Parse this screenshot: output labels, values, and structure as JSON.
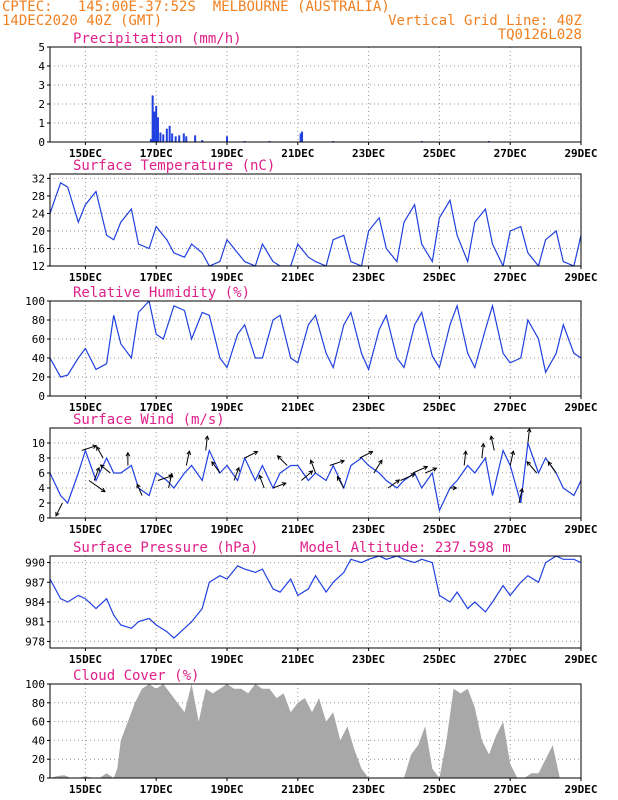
{
  "header": {
    "line1_left": "CPTEC:",
    "line1_coords": "145:00E-37:52S",
    "line1_city": "MELBOURNE (AUSTRALIA)",
    "line2_left": "14DEC2020 40Z (GMT)",
    "line2_right": "Vertical Grid Line: 40Z",
    "line3_right": "TQ0126L028"
  },
  "colors": {
    "header": "#f08020",
    "panel_title": "#e0208a",
    "series": "#2040e0",
    "cloud": "#a8a8a8",
    "grid": "#9a9a9a"
  },
  "x_axis": {
    "range_days": [
      14.0,
      29.0
    ],
    "ticks": [
      {
        "day": 15,
        "label": "15DEC"
      },
      {
        "day": 17,
        "label": "17DEC"
      },
      {
        "day": 19,
        "label": "19DEC"
      },
      {
        "day": 21,
        "label": "21DEC"
      },
      {
        "day": 23,
        "label": "23DEC"
      },
      {
        "day": 25,
        "label": "25DEC"
      },
      {
        "day": 27,
        "label": "27DEC"
      },
      {
        "day": 29,
        "label": "29DEC"
      }
    ]
  },
  "chart_data": [
    {
      "id": "precip",
      "type": "bar",
      "title": "Precipitation (mm/h)",
      "ylim": [
        0,
        5
      ],
      "yticks": [
        0,
        1,
        2,
        3,
        4,
        5
      ],
      "points": [
        [
          16.85,
          0.15
        ],
        [
          16.9,
          2.45
        ],
        [
          16.95,
          1.6
        ],
        [
          17.0,
          1.9
        ],
        [
          17.05,
          1.3
        ],
        [
          17.12,
          0.5
        ],
        [
          17.2,
          0.4
        ],
        [
          17.3,
          0.7
        ],
        [
          17.38,
          0.85
        ],
        [
          17.45,
          0.45
        ],
        [
          17.55,
          0.3
        ],
        [
          17.65,
          0.35
        ],
        [
          17.78,
          0.45
        ],
        [
          17.85,
          0.3
        ],
        [
          18.1,
          0.35
        ],
        [
          18.3,
          0.1
        ],
        [
          19.0,
          0.3
        ],
        [
          19.5,
          0.05
        ],
        [
          20.2,
          0.05
        ],
        [
          21.08,
          0.45
        ],
        [
          21.12,
          0.55
        ],
        [
          22.0,
          0.05
        ],
        [
          24.5,
          0.05
        ],
        [
          26.4,
          0.05
        ]
      ]
    },
    {
      "id": "temp",
      "type": "line",
      "title": "Surface Temperature (nC)",
      "ylim": [
        12,
        33
      ],
      "yticks": [
        12,
        16,
        20,
        24,
        28,
        32
      ],
      "x": [
        14.0,
        14.3,
        14.5,
        14.8,
        15.0,
        15.3,
        15.6,
        15.8,
        16.0,
        16.3,
        16.5,
        16.8,
        17.0,
        17.3,
        17.5,
        17.8,
        18.0,
        18.3,
        18.5,
        18.8,
        19.0,
        19.3,
        19.5,
        19.8,
        20.0,
        20.3,
        20.5,
        20.8,
        21.0,
        21.3,
        21.5,
        21.8,
        22.0,
        22.3,
        22.5,
        22.8,
        23.0,
        23.3,
        23.5,
        23.8,
        24.0,
        24.3,
        24.5,
        24.8,
        25.0,
        25.3,
        25.5,
        25.8,
        26.0,
        26.3,
        26.5,
        26.8,
        27.0,
        27.3,
        27.5,
        27.8,
        28.0,
        28.3,
        28.5,
        28.8,
        29.0
      ],
      "y": [
        24,
        31,
        30,
        22,
        26,
        29,
        19,
        18,
        22,
        25,
        17,
        16,
        21,
        18,
        15,
        14,
        17,
        15,
        12,
        13,
        18,
        15,
        13,
        11,
        17,
        13,
        12,
        12,
        17,
        14,
        13,
        11,
        18,
        19,
        13,
        12,
        20,
        23,
        16,
        13,
        22,
        26,
        17,
        13,
        23,
        27,
        19,
        13,
        22,
        25,
        17,
        12,
        20,
        21,
        15,
        12,
        18,
        20,
        13,
        11,
        19
      ]
    },
    {
      "id": "rh",
      "type": "line",
      "title": "Relative Humidity (%)",
      "ylim": [
        0,
        100
      ],
      "yticks": [
        0,
        20,
        40,
        60,
        80,
        100
      ],
      "x": [
        14.0,
        14.3,
        14.5,
        14.8,
        15.0,
        15.3,
        15.6,
        15.8,
        16.0,
        16.3,
        16.5,
        16.8,
        17.0,
        17.2,
        17.5,
        17.8,
        18.0,
        18.3,
        18.5,
        18.8,
        19.0,
        19.3,
        19.5,
        19.8,
        20.0,
        20.3,
        20.5,
        20.8,
        21.0,
        21.3,
        21.5,
        21.8,
        22.0,
        22.3,
        22.5,
        22.8,
        23.0,
        23.3,
        23.5,
        23.8,
        24.0,
        24.3,
        24.5,
        24.8,
        25.0,
        25.3,
        25.5,
        25.8,
        26.0,
        26.3,
        26.5,
        26.8,
        27.0,
        27.3,
        27.5,
        27.8,
        28.0,
        28.3,
        28.5,
        28.8,
        29.0
      ],
      "y": [
        40,
        20,
        22,
        40,
        50,
        28,
        34,
        85,
        55,
        40,
        88,
        100,
        65,
        60,
        95,
        90,
        60,
        88,
        85,
        40,
        30,
        65,
        75,
        40,
        40,
        80,
        85,
        40,
        35,
        75,
        85,
        45,
        30,
        75,
        88,
        45,
        28,
        70,
        85,
        40,
        30,
        75,
        88,
        42,
        30,
        75,
        95,
        45,
        30,
        70,
        95,
        45,
        35,
        40,
        80,
        60,
        25,
        45,
        75,
        45,
        40
      ]
    },
    {
      "id": "wind",
      "type": "line",
      "title": "Surface Wind (m/s)",
      "ylim": [
        0,
        12
      ],
      "yticks": [
        0,
        2,
        4,
        6,
        8,
        10
      ],
      "x": [
        14.0,
        14.3,
        14.5,
        14.8,
        15.0,
        15.3,
        15.6,
        15.8,
        16.0,
        16.3,
        16.5,
        16.8,
        17.0,
        17.3,
        17.5,
        17.8,
        18.0,
        18.3,
        18.5,
        18.8,
        19.0,
        19.3,
        19.5,
        19.8,
        20.0,
        20.3,
        20.5,
        20.8,
        21.0,
        21.3,
        21.5,
        21.8,
        22.0,
        22.3,
        22.5,
        22.8,
        23.0,
        23.3,
        23.5,
        23.8,
        24.0,
        24.3,
        24.5,
        24.8,
        25.0,
        25.3,
        25.5,
        25.8,
        26.0,
        26.3,
        26.5,
        26.8,
        27.0,
        27.3,
        27.5,
        27.8,
        28.0,
        28.3,
        28.5,
        28.8,
        29.0
      ],
      "y": [
        6,
        3,
        2,
        6,
        9,
        5,
        8,
        6,
        6,
        7,
        4,
        3,
        6,
        5,
        4,
        6,
        7,
        5,
        9,
        6,
        7,
        5,
        8,
        5,
        7,
        4,
        6,
        7,
        7,
        5,
        6,
        5,
        7,
        4,
        7,
        8,
        7,
        6,
        5,
        4,
        5,
        6,
        4,
        6,
        1,
        4,
        5,
        7,
        6,
        8,
        3,
        9,
        7,
        2,
        10,
        6,
        8,
        6,
        4,
        3,
        5
      ],
      "barbs": [
        [
          14.35,
          -0.4,
          -0.8
        ],
        [
          14.9,
          0.9,
          0.3
        ],
        [
          15.1,
          1.0,
          -0.7
        ],
        [
          15.25,
          0.3,
          0.8
        ],
        [
          15.5,
          -0.4,
          0.7
        ],
        [
          15.7,
          -0.6,
          0.5
        ],
        [
          16.2,
          0.0,
          0.8
        ],
        [
          16.6,
          -0.3,
          0.7
        ],
        [
          17.05,
          0.9,
          0.3
        ],
        [
          17.35,
          0.2,
          0.9
        ],
        [
          17.85,
          0.2,
          0.9
        ],
        [
          18.4,
          0.1,
          0.9
        ],
        [
          18.8,
          -0.5,
          0.7
        ],
        [
          19.2,
          0.3,
          0.8
        ],
        [
          19.5,
          0.8,
          0.4
        ],
        [
          20.05,
          -0.3,
          0.8
        ],
        [
          20.3,
          0.8,
          0.3
        ],
        [
          20.7,
          -0.6,
          0.6
        ],
        [
          21.1,
          0.7,
          0.6
        ],
        [
          21.5,
          -0.3,
          0.8
        ],
        [
          21.9,
          0.9,
          0.3
        ],
        [
          22.3,
          -0.4,
          0.7
        ],
        [
          22.75,
          0.8,
          0.4
        ],
        [
          23.15,
          0.5,
          0.8
        ],
        [
          23.55,
          0.7,
          0.5
        ],
        [
          23.9,
          0.9,
          0.4
        ],
        [
          24.25,
          0.9,
          0.4
        ],
        [
          24.6,
          0.7,
          0.3
        ],
        [
          25.3,
          0.4,
          0.0
        ],
        [
          25.7,
          0.1,
          0.9
        ],
        [
          26.2,
          0.1,
          0.9
        ],
        [
          26.55,
          -0.2,
          0.9
        ],
        [
          27.0,
          0.2,
          0.9
        ],
        [
          27.25,
          0.2,
          0.9
        ],
        [
          27.5,
          0.1,
          0.9
        ],
        [
          27.75,
          -0.6,
          0.7
        ],
        [
          28.3,
          -0.5,
          0.7
        ]
      ]
    },
    {
      "id": "pressure",
      "type": "line",
      "title": "Surface Pressure (hPa)",
      "annotation": "Model Altitude: 237.598 m",
      "ylim": [
        977,
        991
      ],
      "yticks": [
        978,
        981,
        984,
        987,
        990
      ],
      "x": [
        14.0,
        14.3,
        14.5,
        14.8,
        15.0,
        15.3,
        15.6,
        15.8,
        16.0,
        16.3,
        16.5,
        16.8,
        17.0,
        17.3,
        17.5,
        17.8,
        18.0,
        18.3,
        18.5,
        18.8,
        19.0,
        19.3,
        19.5,
        19.8,
        20.0,
        20.3,
        20.5,
        20.8,
        21.0,
        21.3,
        21.5,
        21.8,
        22.0,
        22.3,
        22.5,
        22.8,
        23.0,
        23.3,
        23.5,
        23.8,
        24.0,
        24.3,
        24.5,
        24.8,
        25.0,
        25.3,
        25.5,
        25.8,
        26.0,
        26.3,
        26.5,
        26.8,
        27.0,
        27.3,
        27.5,
        27.8,
        28.0,
        28.3,
        28.5,
        28.8,
        29.0
      ],
      "y": [
        987.5,
        984.5,
        984.0,
        985.0,
        984.5,
        983.0,
        984.5,
        982.0,
        980.5,
        980.0,
        981.0,
        981.5,
        980.5,
        979.5,
        978.5,
        980.0,
        981.0,
        983.0,
        987.0,
        988.0,
        987.5,
        989.5,
        989.0,
        988.5,
        989.0,
        986.0,
        985.5,
        987.5,
        985.0,
        986.0,
        988.0,
        985.5,
        987.0,
        988.5,
        990.5,
        990.0,
        990.5,
        991.0,
        990.5,
        991.0,
        990.5,
        990.0,
        990.5,
        990.0,
        985.0,
        984.0,
        985.5,
        983.0,
        984.0,
        982.5,
        984.0,
        986.5,
        985.0,
        987.0,
        988.0,
        987.0,
        990.0,
        991.0,
        990.5,
        990.5,
        990.0
      ]
    },
    {
      "id": "cloud",
      "type": "area",
      "title": "Cloud Cover (%)",
      "ylim": [
        0,
        100
      ],
      "yticks": [
        0,
        20,
        40,
        60,
        80,
        100
      ],
      "x": [
        14.0,
        14.2,
        14.4,
        14.6,
        14.8,
        15.0,
        15.2,
        15.4,
        15.6,
        15.8,
        15.9,
        16.0,
        16.2,
        16.4,
        16.6,
        16.8,
        17.0,
        17.2,
        17.4,
        17.6,
        17.8,
        18.0,
        18.2,
        18.4,
        18.6,
        18.8,
        19.0,
        19.2,
        19.4,
        19.6,
        19.8,
        20.0,
        20.2,
        20.4,
        20.6,
        20.8,
        21.0,
        21.2,
        21.4,
        21.6,
        21.8,
        22.0,
        22.2,
        22.4,
        22.6,
        22.8,
        23.0,
        23.2,
        23.4,
        23.6,
        23.8,
        24.0,
        24.2,
        24.4,
        24.6,
        24.8,
        25.0,
        25.2,
        25.4,
        25.6,
        25.8,
        26.0,
        26.2,
        26.4,
        26.6,
        26.8,
        27.0,
        27.2,
        27.4,
        27.6,
        27.8,
        28.0,
        28.2,
        28.4,
        28.6,
        28.8,
        29.0
      ],
      "y": [
        0,
        2,
        3,
        0,
        0,
        2,
        0,
        0,
        5,
        0,
        10,
        40,
        60,
        80,
        95,
        100,
        95,
        100,
        90,
        80,
        70,
        100,
        60,
        95,
        90,
        95,
        100,
        95,
        95,
        90,
        100,
        95,
        95,
        85,
        90,
        70,
        80,
        85,
        70,
        85,
        60,
        70,
        40,
        55,
        30,
        10,
        0,
        0,
        0,
        0,
        0,
        0,
        25,
        35,
        55,
        10,
        0,
        40,
        95,
        90,
        95,
        75,
        40,
        25,
        45,
        60,
        15,
        0,
        0,
        5,
        5,
        20,
        35,
        0,
        0,
        0,
        0
      ]
    }
  ]
}
